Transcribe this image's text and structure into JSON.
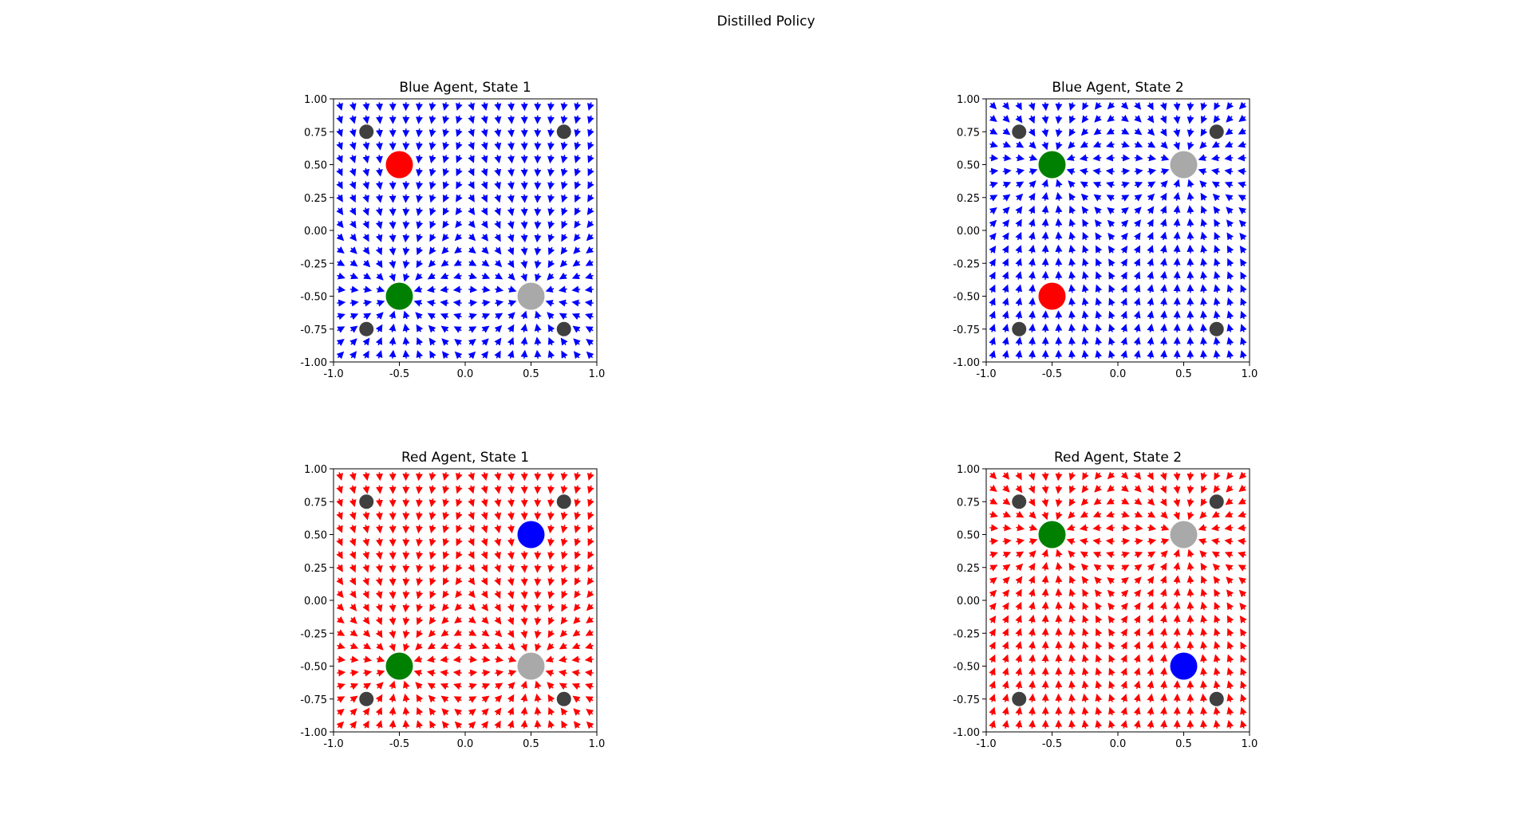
{
  "figure": {
    "suptitle": "Distilled Policy"
  },
  "chart_data": [
    {
      "type": "quiver",
      "title": "Blue Agent, State 1",
      "xlim": [
        -1.0,
        1.0
      ],
      "ylim": [
        -1.0,
        1.0
      ],
      "xticks": [
        "-1.0",
        "-0.5",
        "0.0",
        "0.5",
        "1.0"
      ],
      "yticks": [
        "1.00",
        "0.75",
        "0.50",
        "0.25",
        "0.00",
        "-0.25",
        "-0.50",
        "-0.75",
        "-1.00"
      ],
      "arrow_color": "#0000ff",
      "grid_n": 20,
      "landmarks": [
        {
          "name": "small",
          "x": -0.75,
          "y": 0.75,
          "color": "#404040"
        },
        {
          "name": "small",
          "x": 0.75,
          "y": 0.75,
          "color": "#404040"
        },
        {
          "name": "small",
          "x": -0.75,
          "y": -0.75,
          "color": "#404040"
        },
        {
          "name": "small",
          "x": 0.75,
          "y": -0.75,
          "color": "#404040"
        },
        {
          "name": "red",
          "x": -0.5,
          "y": 0.5,
          "color": "#ff0000"
        },
        {
          "name": "green",
          "x": -0.5,
          "y": -0.5,
          "color": "#008000"
        },
        {
          "name": "gray",
          "x": 0.5,
          "y": -0.5,
          "color": "#a9a9a9"
        }
      ],
      "attractors": [
        [
          -0.5,
          -0.5
        ],
        [
          0.5,
          -0.5
        ]
      ]
    },
    {
      "type": "quiver",
      "title": "Blue Agent, State 2",
      "xlim": [
        -1.0,
        1.0
      ],
      "ylim": [
        -1.0,
        1.0
      ],
      "xticks": [
        "-1.0",
        "-0.5",
        "0.0",
        "0.5",
        "1.0"
      ],
      "yticks": [
        "1.00",
        "0.75",
        "0.50",
        "0.25",
        "0.00",
        "-0.25",
        "-0.50",
        "-0.75",
        "-1.00"
      ],
      "arrow_color": "#0000ff",
      "grid_n": 20,
      "landmarks": [
        {
          "name": "small",
          "x": -0.75,
          "y": 0.75,
          "color": "#404040"
        },
        {
          "name": "small",
          "x": 0.75,
          "y": 0.75,
          "color": "#404040"
        },
        {
          "name": "small",
          "x": -0.75,
          "y": -0.75,
          "color": "#404040"
        },
        {
          "name": "small",
          "x": 0.75,
          "y": -0.75,
          "color": "#404040"
        },
        {
          "name": "green",
          "x": -0.5,
          "y": 0.5,
          "color": "#008000"
        },
        {
          "name": "gray",
          "x": 0.5,
          "y": 0.5,
          "color": "#a9a9a9"
        },
        {
          "name": "red",
          "x": -0.5,
          "y": -0.5,
          "color": "#ff0000"
        }
      ],
      "attractors": [
        [
          -0.5,
          0.5
        ],
        [
          0.5,
          0.5
        ]
      ]
    },
    {
      "type": "quiver",
      "title": "Red Agent, State 1",
      "xlim": [
        -1.0,
        1.0
      ],
      "ylim": [
        -1.0,
        1.0
      ],
      "xticks": [
        "-1.0",
        "-0.5",
        "0.0",
        "0.5",
        "1.0"
      ],
      "yticks": [
        "1.00",
        "0.75",
        "0.50",
        "0.25",
        "0.00",
        "-0.25",
        "-0.50",
        "-0.75",
        "-1.00"
      ],
      "arrow_color": "#ff0000",
      "grid_n": 20,
      "landmarks": [
        {
          "name": "small",
          "x": -0.75,
          "y": 0.75,
          "color": "#404040"
        },
        {
          "name": "small",
          "x": 0.75,
          "y": 0.75,
          "color": "#404040"
        },
        {
          "name": "small",
          "x": -0.75,
          "y": -0.75,
          "color": "#404040"
        },
        {
          "name": "small",
          "x": 0.75,
          "y": -0.75,
          "color": "#404040"
        },
        {
          "name": "blue",
          "x": 0.5,
          "y": 0.5,
          "color": "#0000ff"
        },
        {
          "name": "green",
          "x": -0.5,
          "y": -0.5,
          "color": "#008000"
        },
        {
          "name": "gray",
          "x": 0.5,
          "y": -0.5,
          "color": "#a9a9a9"
        }
      ],
      "attractors": [
        [
          -0.5,
          -0.5
        ],
        [
          0.5,
          -0.5
        ]
      ]
    },
    {
      "type": "quiver",
      "title": "Red Agent, State 2",
      "xlim": [
        -1.0,
        1.0
      ],
      "ylim": [
        -1.0,
        1.0
      ],
      "xticks": [
        "-1.0",
        "-0.5",
        "0.0",
        "0.5",
        "1.0"
      ],
      "yticks": [
        "1.00",
        "0.75",
        "0.50",
        "0.25",
        "0.00",
        "-0.25",
        "-0.50",
        "-0.75",
        "-1.00"
      ],
      "arrow_color": "#ff0000",
      "grid_n": 20,
      "landmarks": [
        {
          "name": "small",
          "x": -0.75,
          "y": 0.75,
          "color": "#404040"
        },
        {
          "name": "small",
          "x": 0.75,
          "y": 0.75,
          "color": "#404040"
        },
        {
          "name": "small",
          "x": -0.75,
          "y": -0.75,
          "color": "#404040"
        },
        {
          "name": "small",
          "x": 0.75,
          "y": -0.75,
          "color": "#404040"
        },
        {
          "name": "green",
          "x": -0.5,
          "y": 0.5,
          "color": "#008000"
        },
        {
          "name": "gray",
          "x": 0.5,
          "y": 0.5,
          "color": "#a9a9a9"
        },
        {
          "name": "blue",
          "x": 0.5,
          "y": -0.5,
          "color": "#0000ff"
        }
      ],
      "attractors": [
        [
          -0.5,
          0.5
        ],
        [
          0.5,
          0.5
        ]
      ]
    }
  ]
}
